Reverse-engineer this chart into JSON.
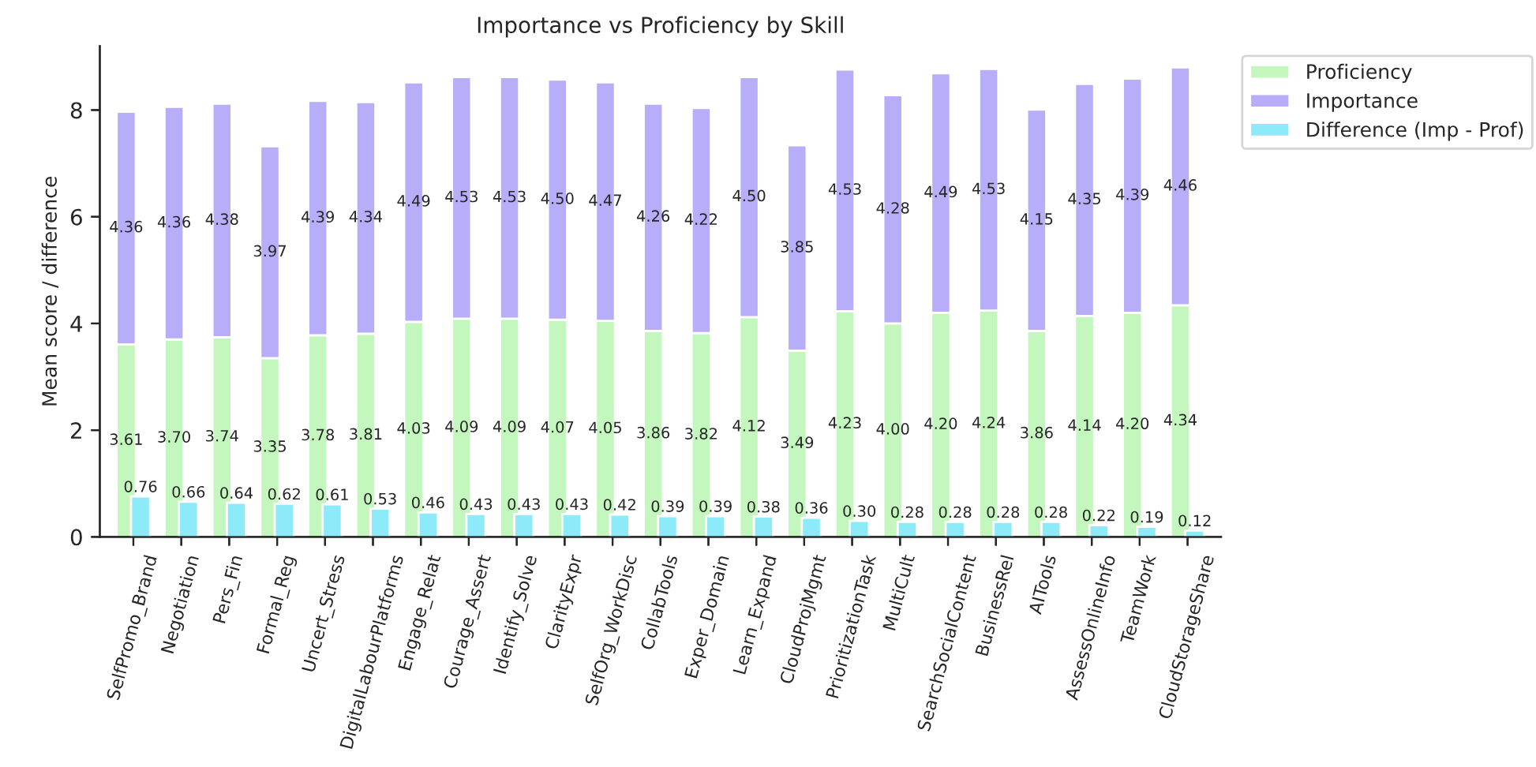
{
  "chart_data": [
    {
      "type": "bar",
      "title": "Importance vs Proficiency by Skill",
      "ylabel": "Mean score / difference",
      "categories": [
        "SelfPromo_Brand",
        "Negotiation",
        "Pers_Fin",
        "Formal_Reg",
        "Uncert_Stress",
        "DigitalLabourPlatforms",
        "Engage_Relat",
        "Courage_Assert",
        "Identify_Solve",
        "ClarityExpr",
        "SelfOrg_WorkDisc",
        "CollabTools",
        "Exper_Domain",
        "Learn_Expand",
        "CloudProjMgmt",
        "PrioritizationTask",
        "MultiCult",
        "SearchSocialContent",
        "BusinessRel",
        "AITools",
        "AssessOnlineInfo",
        "TeamWork",
        "CloudStorageShare"
      ],
      "stacked": true,
      "series": [
        {
          "name": "Proficiency",
          "color": "#c4f7bd",
          "values": [
            3.61,
            3.7,
            3.74,
            3.35,
            3.78,
            3.81,
            4.03,
            4.09,
            4.09,
            4.07,
            4.05,
            3.86,
            3.82,
            4.12,
            3.49,
            4.23,
            4.0,
            4.2,
            4.24,
            3.86,
            4.14,
            4.2,
            4.34
          ],
          "value_labels": [
            "3.61",
            "3.70",
            "3.74",
            "3.35",
            "3.78",
            "3.81",
            "4.03",
            "4.09",
            "4.09",
            "4.07",
            "4.05",
            "3.86",
            "3.82",
            "4.12",
            "3.49",
            "4.23",
            "4.00",
            "4.20",
            "4.24",
            "3.86",
            "4.14",
            "4.20",
            "4.34"
          ]
        },
        {
          "name": "Importance",
          "color": "#b7adf8",
          "values": [
            4.36,
            4.36,
            4.38,
            3.97,
            4.39,
            4.34,
            4.49,
            4.53,
            4.53,
            4.5,
            4.47,
            4.26,
            4.22,
            4.5,
            3.85,
            4.53,
            4.28,
            4.49,
            4.53,
            4.15,
            4.35,
            4.39,
            4.46
          ],
          "value_labels": [
            "4.36",
            "4.36",
            "4.38",
            "3.97",
            "4.39",
            "4.34",
            "4.49",
            "4.53",
            "4.53",
            "4.50",
            "4.47",
            "4.26",
            "4.22",
            "4.50",
            "3.85",
            "4.53",
            "4.28",
            "4.49",
            "4.53",
            "4.15",
            "4.35",
            "4.39",
            "4.46"
          ]
        }
      ],
      "ylim": [
        0,
        9.2
      ],
      "yticks": [
        0,
        2,
        4,
        6,
        8
      ],
      "grid": false,
      "legend": "top right"
    },
    {
      "type": "bar",
      "categories": [
        null,
        null,
        null,
        null,
        null,
        null,
        null,
        null,
        null,
        null,
        null,
        null,
        null,
        null,
        null,
        null,
        null,
        null,
        null,
        null,
        null,
        null,
        null
      ],
      "series": [
        {
          "name": "Difference (Imp - Prof)",
          "color": "#8ceaf9",
          "values": [
            0.76,
            0.66,
            0.64,
            0.62,
            0.61,
            0.53,
            0.46,
            0.43,
            0.43,
            0.43,
            0.42,
            0.39,
            0.39,
            0.38,
            0.36,
            0.3,
            0.28,
            0.28,
            0.28,
            0.28,
            0.22,
            0.19,
            0.12
          ],
          "value_labels": [
            "0.76",
            "0.66",
            "0.64",
            "0.62",
            "0.61",
            "0.53",
            "0.46",
            "0.43",
            "0.43",
            "0.43",
            "0.42",
            "0.39",
            "0.39",
            "0.38",
            "0.36",
            "0.30",
            "0.28",
            "0.28",
            "0.28",
            "0.28",
            "0.22",
            "0.19",
            "0.12"
          ]
        }
      ],
      "ylim": [
        0,
        9.2
      ],
      "yticks": [
        0,
        2,
        4,
        6,
        8
      ],
      "tick_labels": false,
      "legend": "top right"
    }
  ]
}
